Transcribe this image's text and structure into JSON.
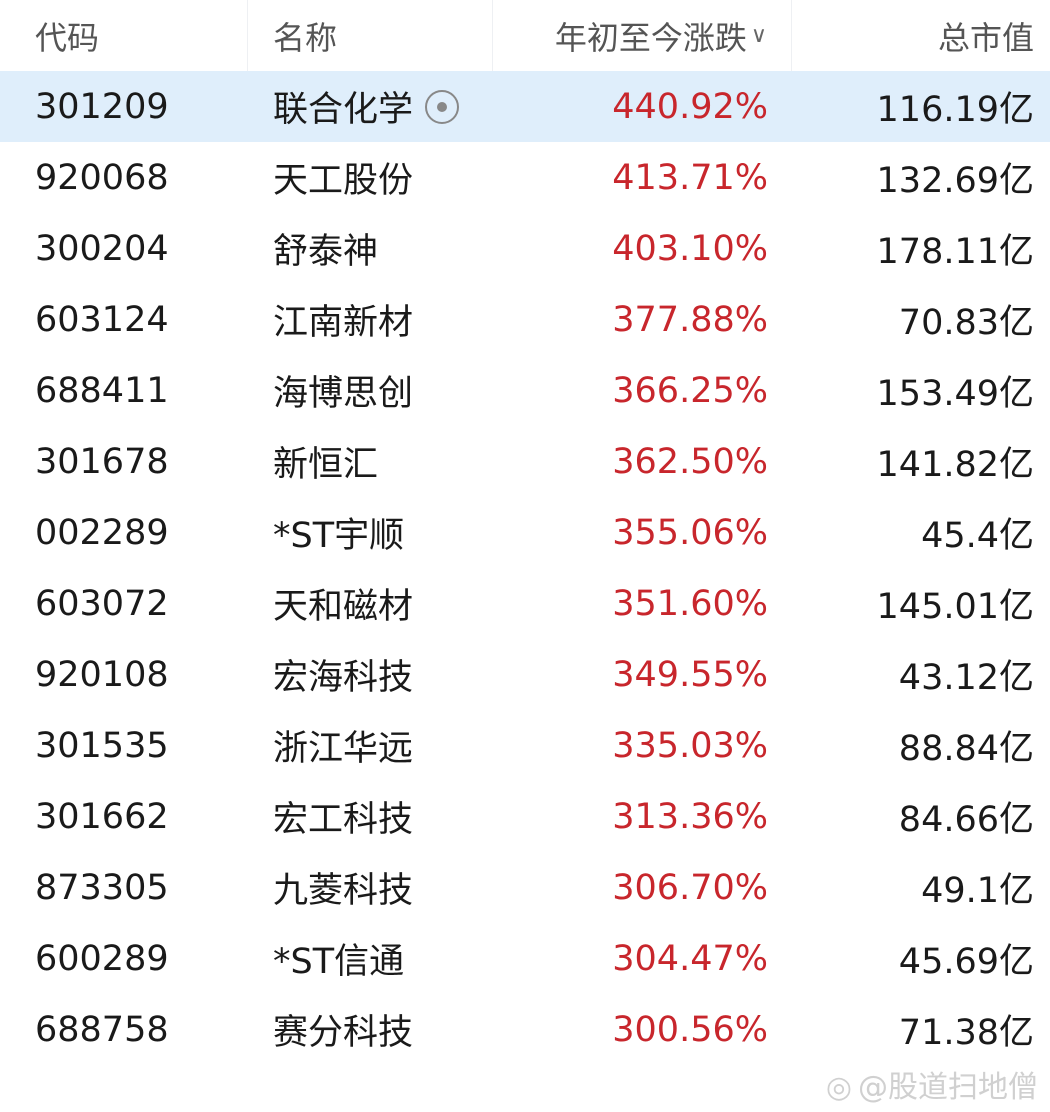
{
  "header": {
    "code": "代码",
    "name": "名称",
    "change": "年初至今涨跌",
    "cap": "总市值",
    "sort_icon": "chevron-down-icon"
  },
  "colors": {
    "up": "#c8262c",
    "selected_row": "#dfeefb"
  },
  "rows": [
    {
      "code": "301209",
      "name": "联合化学",
      "change": "440.92%",
      "cap": "116.19亿"
    },
    {
      "code": "920068",
      "name": "天工股份",
      "change": "413.71%",
      "cap": "132.69亿"
    },
    {
      "code": "300204",
      "name": "舒泰神",
      "change": "403.10%",
      "cap": "178.11亿"
    },
    {
      "code": "603124",
      "name": "江南新材",
      "change": "377.88%",
      "cap": "70.83亿"
    },
    {
      "code": "688411",
      "name": "海博思创",
      "change": "366.25%",
      "cap": "153.49亿"
    },
    {
      "code": "301678",
      "name": "新恒汇",
      "change": "362.50%",
      "cap": "141.82亿"
    },
    {
      "code": "002289",
      "name": "*ST宇顺",
      "change": "355.06%",
      "cap": "45.4亿"
    },
    {
      "code": "603072",
      "name": "天和磁材",
      "change": "351.60%",
      "cap": "145.01亿"
    },
    {
      "code": "920108",
      "name": "宏海科技",
      "change": "349.55%",
      "cap": "43.12亿"
    },
    {
      "code": "301535",
      "name": "浙江华远",
      "change": "335.03%",
      "cap": "88.84亿"
    },
    {
      "code": "301662",
      "name": "宏工科技",
      "change": "313.36%",
      "cap": "84.66亿"
    },
    {
      "code": "873305",
      "name": "九菱科技",
      "change": "306.70%",
      "cap": "49.1亿"
    },
    {
      "code": "600289",
      "name": "*ST信通",
      "change": "304.47%",
      "cap": "45.69亿"
    },
    {
      "code": "688758",
      "name": "赛分科技",
      "change": "300.56%",
      "cap": "71.38亿"
    }
  ],
  "watermark": "@股道扫地僧"
}
